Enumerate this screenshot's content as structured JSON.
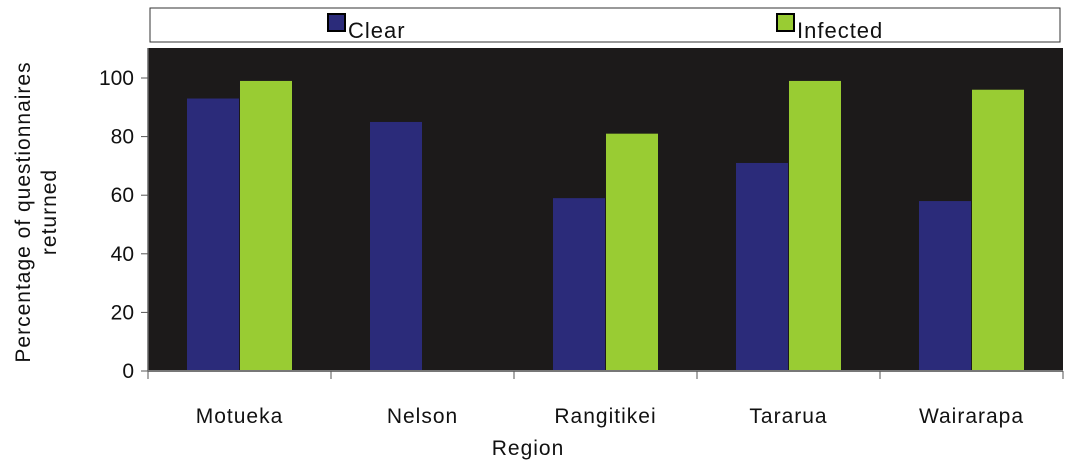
{
  "chart_data": {
    "type": "bar",
    "categories": [
      "Motueka",
      "Nelson",
      "Rangitikei",
      "Tararua",
      "Wairarapa"
    ],
    "series": [
      {
        "name": "Clear",
        "values": [
          93,
          85,
          59,
          71,
          58
        ],
        "color": "#2b2b7a"
      },
      {
        "name": "Infected",
        "values": [
          99,
          0,
          81,
          99,
          96
        ],
        "color": "#99cc33"
      }
    ],
    "xlabel": "Region",
    "ylabel_lines": [
      "Percentage of questionnaires",
      "returned"
    ],
    "ylim": [
      0,
      100
    ],
    "yticks": [
      0,
      20,
      40,
      60,
      80,
      100
    ],
    "legend_position": "top",
    "plot_background": "#1c1a1a",
    "grid": false
  }
}
